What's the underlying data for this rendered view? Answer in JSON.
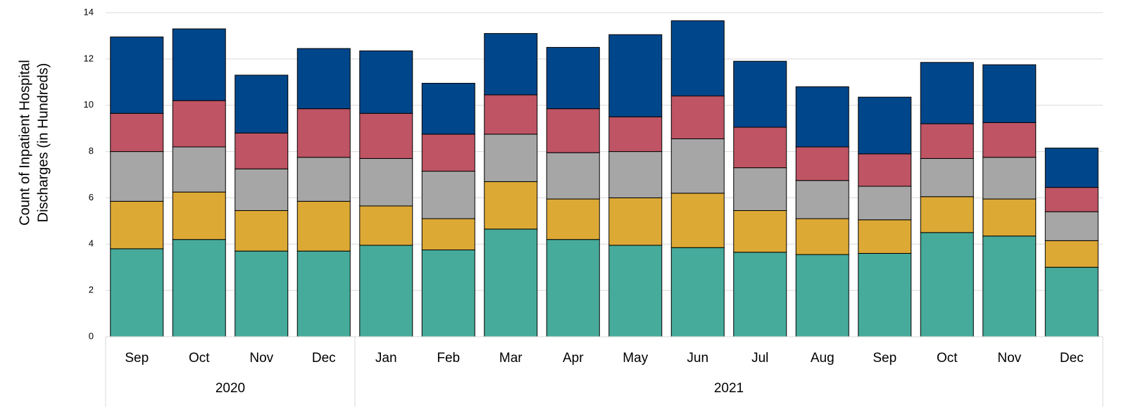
{
  "chart_data": {
    "type": "stacked-bar",
    "ylabel": [
      "Count of Inpatient Hospital",
      "Discharges (in Hundreds)"
    ],
    "categories": [
      "Sep",
      "Oct",
      "Nov",
      "Dec",
      "Jan",
      "Feb",
      "Mar",
      "Apr",
      "May",
      "Jun",
      "Jul",
      "Aug",
      "Sep",
      "Oct",
      "Nov",
      "Dec"
    ],
    "category_groups": [
      "2020",
      "2020",
      "2020",
      "2020",
      "2021",
      "2021",
      "2021",
      "2021",
      "2021",
      "2021",
      "2021",
      "2021",
      "2021",
      "2021",
      "2021",
      "2021"
    ],
    "series": [
      {
        "color": "#46ab9b",
        "values": [
          3.8,
          4.2,
          3.7,
          3.7,
          3.95,
          3.75,
          4.65,
          4.2,
          3.95,
          3.85,
          3.65,
          3.55,
          3.6,
          4.5,
          4.35,
          3.0
        ]
      },
      {
        "color": "#dda935",
        "values": [
          2.05,
          2.05,
          1.75,
          2.15,
          1.7,
          1.35,
          2.05,
          1.75,
          2.05,
          2.35,
          1.8,
          1.55,
          1.45,
          1.55,
          1.6,
          1.15
        ]
      },
      {
        "color": "#a6a6a6",
        "values": [
          2.15,
          1.95,
          1.8,
          1.9,
          2.05,
          2.05,
          2.05,
          2.0,
          2.0,
          2.35,
          1.85,
          1.65,
          1.45,
          1.65,
          1.8,
          1.25
        ]
      },
      {
        "color": "#be5464",
        "values": [
          1.65,
          2.0,
          1.55,
          2.1,
          1.95,
          1.6,
          1.7,
          1.9,
          1.5,
          1.85,
          1.75,
          1.45,
          1.4,
          1.5,
          1.5,
          1.05
        ]
      },
      {
        "color": "#00468b",
        "values": [
          3.3,
          3.1,
          2.5,
          2.6,
          2.7,
          2.2,
          2.65,
          2.65,
          3.55,
          3.25,
          2.85,
          2.6,
          2.45,
          2.65,
          2.5,
          1.7
        ]
      }
    ],
    "ylim": [
      0,
      14
    ],
    "yticks": [
      0,
      2,
      4,
      6,
      8,
      10,
      12,
      14
    ],
    "grid": true
  }
}
